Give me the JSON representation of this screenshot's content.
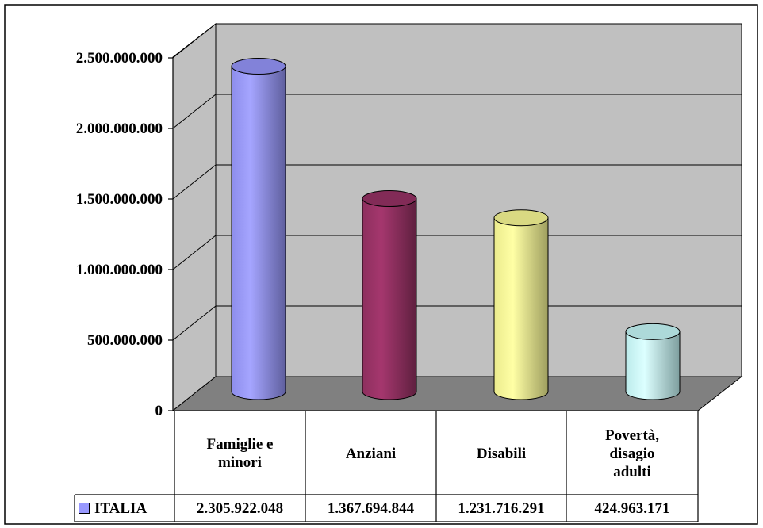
{
  "chart_data": {
    "type": "bar",
    "bar_shape": "cylinder-3d",
    "categories": [
      "Famiglie e\nminori",
      "Anziani",
      "Disabili",
      "Povertà,\ndisagio\nadulti"
    ],
    "series": [
      {
        "name": "ITALIA",
        "values": [
          2305922048,
          1367694844,
          1231716291,
          424963171
        ],
        "value_labels": [
          "2.305.922.048",
          "1.367.694.844",
          "1.231.716.291",
          "424.963.171"
        ],
        "legend_color": "#9999ff"
      }
    ],
    "bar_colors": [
      "#9999ff",
      "#993366",
      "#ffff99",
      "#ccffff"
    ],
    "wall_color": "#c0c0c0",
    "floor_color": "#808080",
    "ylim": [
      0,
      2500000000
    ],
    "yticks": [
      0,
      500000000,
      1000000000,
      1500000000,
      2000000000,
      2500000000
    ],
    "ytick_labels": [
      "0",
      "500.000.000",
      "1.000.000.000",
      "1.500.000.000",
      "2.000.000.000",
      "2.500.000.000"
    ],
    "grid": true,
    "data_table": true,
    "legend": "in data table"
  }
}
